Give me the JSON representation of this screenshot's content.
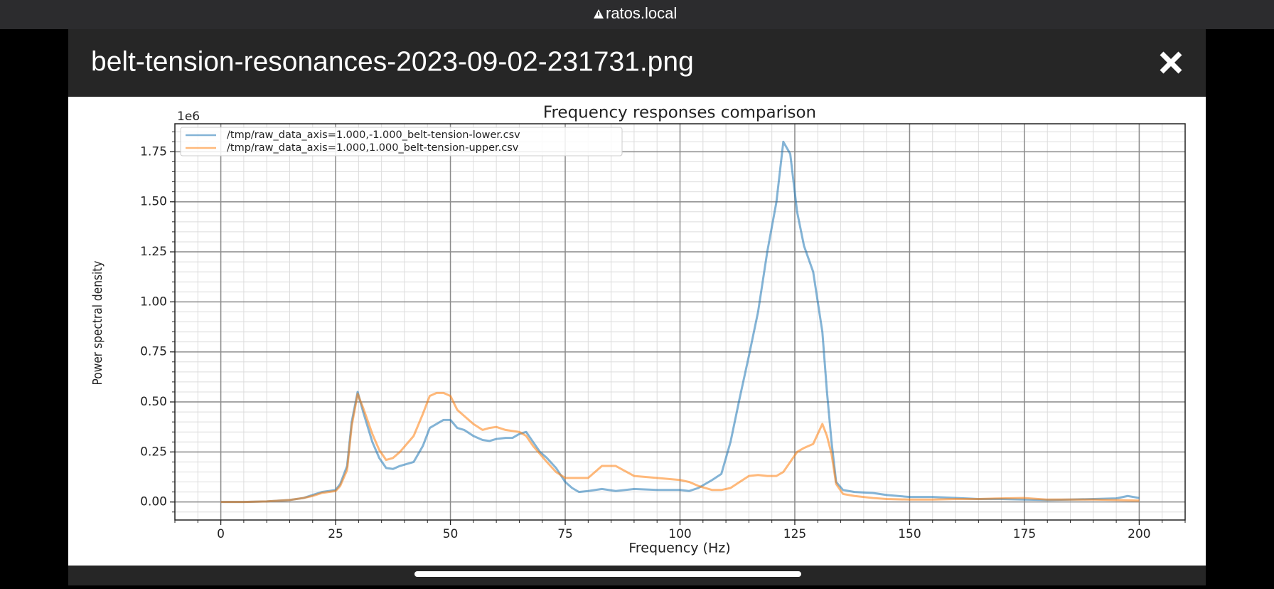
{
  "browser": {
    "url": "ratos.local"
  },
  "dialog": {
    "title": "belt-tension-resonances-2023-09-02-231731.png"
  },
  "chart_data": {
    "type": "line",
    "title": "Frequency responses comparison",
    "xlabel": "Frequency (Hz)",
    "ylabel": "Power spectral density",
    "y_offset_label": "1e6",
    "x": [
      0,
      5,
      10,
      15,
      18,
      20,
      22,
      25,
      26,
      27.5,
      28.5,
      29.8,
      31,
      33,
      34.5,
      36,
      37.5,
      39,
      42,
      44,
      45.5,
      47,
      48.5,
      50,
      51.5,
      53,
      55,
      57,
      58.5,
      60,
      62,
      63.5,
      65,
      66.5,
      68,
      69.5,
      71,
      73,
      75,
      76.5,
      78,
      80,
      83,
      86,
      90,
      95,
      100,
      102,
      104,
      107,
      109,
      111,
      113,
      115,
      117,
      119,
      121,
      122.5,
      124,
      125.5,
      127,
      129,
      131,
      132,
      133,
      134,
      135.5,
      138,
      142,
      145,
      150,
      155,
      160,
      165,
      170,
      175,
      180,
      185,
      190,
      195,
      197.5,
      200
    ],
    "series": [
      {
        "name": "/tmp/raw_data_axis=1.000,-1.000_belt-tension-lower.csv",
        "color": "#1f77b4",
        "values": [
          0,
          0,
          0.003,
          0.01,
          0.02,
          0.035,
          0.05,
          0.06,
          0.09,
          0.18,
          0.4,
          0.55,
          0.45,
          0.3,
          0.22,
          0.17,
          0.165,
          0.18,
          0.2,
          0.28,
          0.37,
          0.39,
          0.41,
          0.41,
          0.37,
          0.36,
          0.33,
          0.31,
          0.305,
          0.315,
          0.32,
          0.32,
          0.34,
          0.35,
          0.3,
          0.25,
          0.22,
          0.17,
          0.1,
          0.07,
          0.05,
          0.055,
          0.065,
          0.055,
          0.065,
          0.06,
          0.06,
          0.055,
          0.07,
          0.11,
          0.14,
          0.3,
          0.52,
          0.73,
          0.95,
          1.25,
          1.5,
          1.8,
          1.74,
          1.45,
          1.28,
          1.15,
          0.85,
          0.55,
          0.3,
          0.1,
          0.06,
          0.05,
          0.045,
          0.035,
          0.025,
          0.025,
          0.02,
          0.015,
          0.015,
          0.012,
          0.01,
          0.012,
          0.015,
          0.018,
          0.03,
          0.02
        ]
      },
      {
        "name": "/tmp/raw_data_axis=1.000,1.000_belt-tension-upper.csv",
        "color": "#ff7f0e",
        "values": [
          0,
          0,
          0.003,
          0.01,
          0.02,
          0.03,
          0.045,
          0.055,
          0.08,
          0.16,
          0.38,
          0.54,
          0.47,
          0.34,
          0.26,
          0.21,
          0.22,
          0.25,
          0.33,
          0.44,
          0.53,
          0.545,
          0.545,
          0.53,
          0.46,
          0.43,
          0.39,
          0.36,
          0.37,
          0.375,
          0.36,
          0.355,
          0.35,
          0.33,
          0.28,
          0.24,
          0.2,
          0.15,
          0.12,
          0.12,
          0.12,
          0.12,
          0.18,
          0.18,
          0.13,
          0.12,
          0.11,
          0.1,
          0.08,
          0.06,
          0.06,
          0.07,
          0.1,
          0.13,
          0.135,
          0.13,
          0.13,
          0.15,
          0.2,
          0.25,
          0.27,
          0.29,
          0.39,
          0.33,
          0.24,
          0.09,
          0.04,
          0.03,
          0.02,
          0.015,
          0.012,
          0.012,
          0.015,
          0.015,
          0.018,
          0.02,
          0.012,
          0.012,
          0.012,
          0.01,
          0.008,
          0.007
        ]
      }
    ],
    "xlim": [
      -10,
      210
    ],
    "xticks": [
      0,
      25,
      50,
      75,
      100,
      125,
      150,
      175,
      200
    ],
    "ylim": [
      -0.09,
      1.89
    ],
    "yticks": [
      {
        "value": 0,
        "label": "0.00"
      },
      0.25,
      {
        "value": 0.5,
        "label": "0.50"
      },
      0.75,
      {
        "value": 1,
        "label": "1.00"
      },
      1.25,
      {
        "value": 1.5,
        "label": "1.50"
      },
      1.75
    ],
    "grid": true,
    "minor_grid": true,
    "legend": "upper left"
  }
}
